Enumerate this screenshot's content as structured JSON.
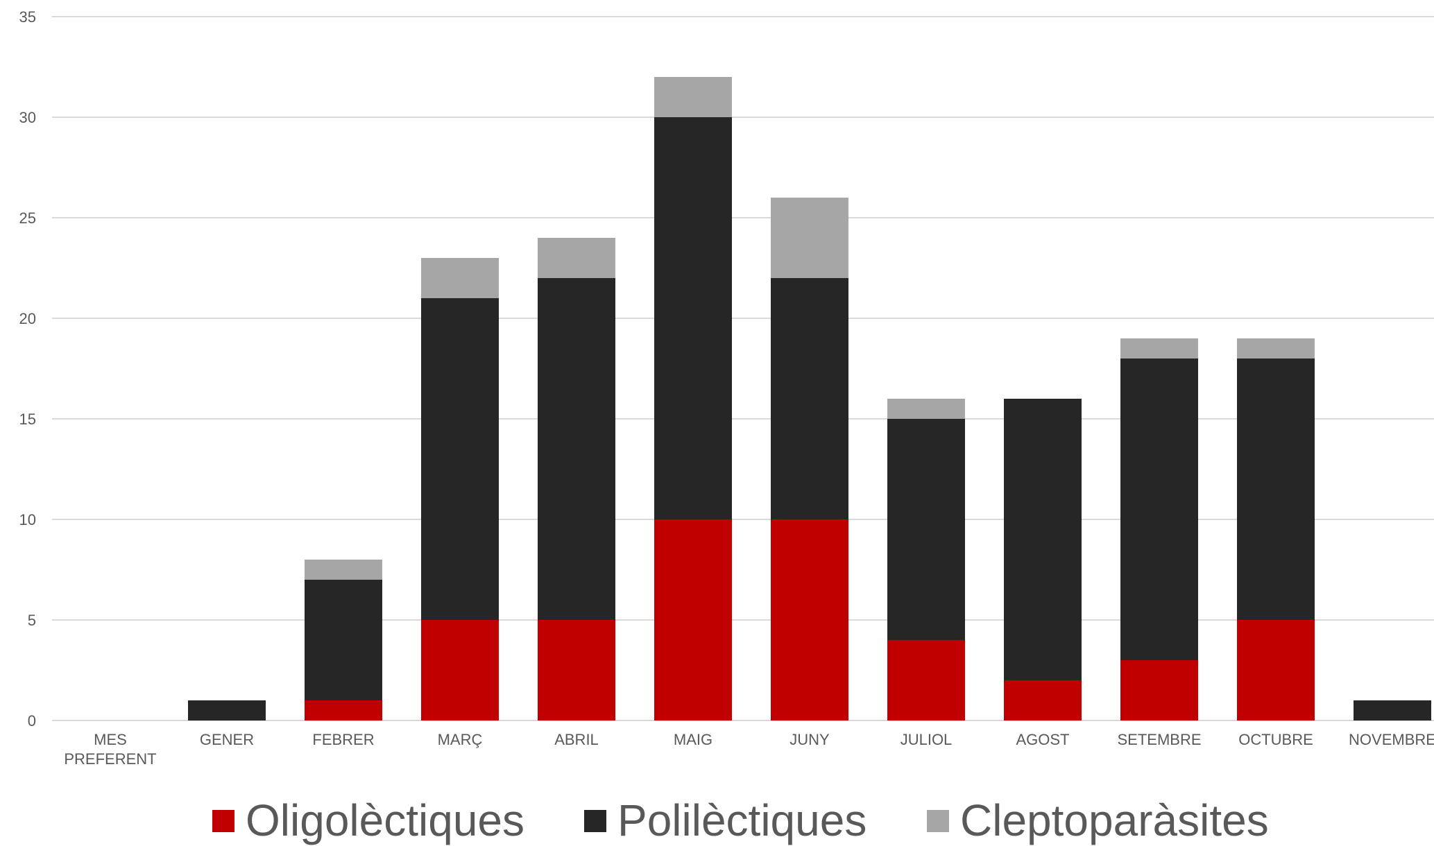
{
  "chart_data": {
    "type": "bar",
    "stacked": true,
    "categories": [
      "MES|PREFERENT",
      "GENER",
      "FEBRER",
      "MARÇ",
      "ABRIL",
      "MAIG",
      "JUNY",
      "JULIOL",
      "AGOST",
      "SETEMBRE",
      "OCTUBRE",
      "NOVEMBRE"
    ],
    "series": [
      {
        "name": "Oligolèctiques",
        "color": "#c00000",
        "values": [
          0,
          0,
          1,
          5,
          5,
          10,
          10,
          4,
          2,
          3,
          5,
          0
        ]
      },
      {
        "name": "Polilèctiques",
        "color": "#262626",
        "values": [
          0,
          1,
          6,
          16,
          17,
          20,
          12,
          11,
          14,
          15,
          13,
          1
        ]
      },
      {
        "name": "Cleptoparàsites",
        "color": "#a6a6a6",
        "values": [
          0,
          0,
          1,
          2,
          2,
          2,
          4,
          1,
          0,
          1,
          1,
          0
        ]
      }
    ],
    "ylim": [
      0,
      35
    ],
    "yticks": [
      0,
      5,
      10,
      15,
      20,
      25,
      30,
      35
    ],
    "grid": true,
    "legend": "bottom"
  }
}
